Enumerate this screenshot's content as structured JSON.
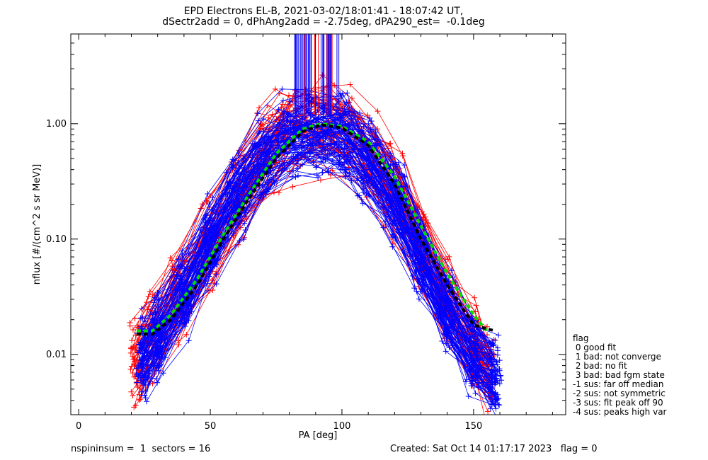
{
  "title": {
    "line1": "EPD Electrons EL-B, 2021-03-02/18:01:41 - 18:07:42 UT,",
    "line2": "dSectr2add = 0, dPhAng2add = -2.75deg, dPA290_est=  -0.1deg"
  },
  "legend": {
    "heading": "flag",
    "items": [
      " 0 good fit",
      " 1 bad: not converge",
      " 2 bad: no fit",
      " 3 bad: bad fgm state",
      "-1 sus: far off median",
      "-2 sus: not symmetric",
      "-3 sus: fit peak off 90",
      "-4 sus: peaks high var"
    ]
  },
  "footer": {
    "left": "nspininsum =  1  sectors = 16",
    "right": "Created: Sat Oct 14 01:17:17 2023   flag = 0"
  },
  "colors": {
    "red": "#ff0000",
    "blue": "#0000ff",
    "green": "#00dd00",
    "black": "#000000"
  },
  "chart_data": {
    "type": "line",
    "xlabel": "PA [deg]",
    "ylabel": "nflux [#/(cm^2 s sr MeV)]",
    "xlim": [
      -3,
      185
    ],
    "ylim": [
      0.003,
      6.0
    ],
    "yscale": "log",
    "xticks": [
      0,
      50,
      100,
      150
    ],
    "xtick_labels": [
      "0",
      "50",
      "100",
      "150"
    ],
    "yticks": [
      0.01,
      0.1,
      1.0
    ],
    "ytick_labels": [
      "0.01",
      "0.10",
      "1.00"
    ],
    "grid": false,
    "series": [
      {
        "color": "red",
        "style": "line+cross",
        "x": [
          22,
          28,
          38,
          50,
          62,
          72,
          80,
          90,
          100,
          110,
          120,
          130,
          140,
          150,
          156
        ],
        "y": [
          0.008,
          0.014,
          0.03,
          0.09,
          0.25,
          0.55,
          0.85,
          0.95,
          0.9,
          0.55,
          0.25,
          0.09,
          0.03,
          0.011,
          0.007
        ]
      },
      {
        "color": "blue",
        "style": "line+cross",
        "x": [
          24,
          30,
          40,
          50,
          60,
          70,
          80,
          90,
          100,
          110,
          120,
          130,
          140,
          150,
          158
        ],
        "y": [
          0.01,
          0.015,
          0.035,
          0.1,
          0.25,
          0.5,
          0.8,
          0.9,
          0.85,
          0.5,
          0.22,
          0.07,
          0.025,
          0.01,
          0.007
        ]
      },
      {
        "color": "green",
        "style": "dashed",
        "x": [
          22,
          28,
          35,
          45,
          55,
          65,
          75,
          85,
          92,
          100,
          110,
          120,
          130,
          140,
          150,
          155
        ],
        "y": [
          0.016,
          0.016,
          0.022,
          0.045,
          0.11,
          0.25,
          0.55,
          0.9,
          1.0,
          0.95,
          0.7,
          0.35,
          0.13,
          0.05,
          0.022,
          0.016
        ]
      },
      {
        "color": "black",
        "style": "dashed",
        "x": [
          22,
          28,
          35,
          45,
          55,
          65,
          75,
          85,
          92,
          100,
          110,
          120,
          130,
          140,
          150,
          158
        ],
        "y": [
          0.015,
          0.015,
          0.02,
          0.04,
          0.1,
          0.23,
          0.5,
          0.85,
          0.98,
          0.92,
          0.65,
          0.3,
          0.1,
          0.04,
          0.018,
          0.016
        ]
      }
    ]
  }
}
